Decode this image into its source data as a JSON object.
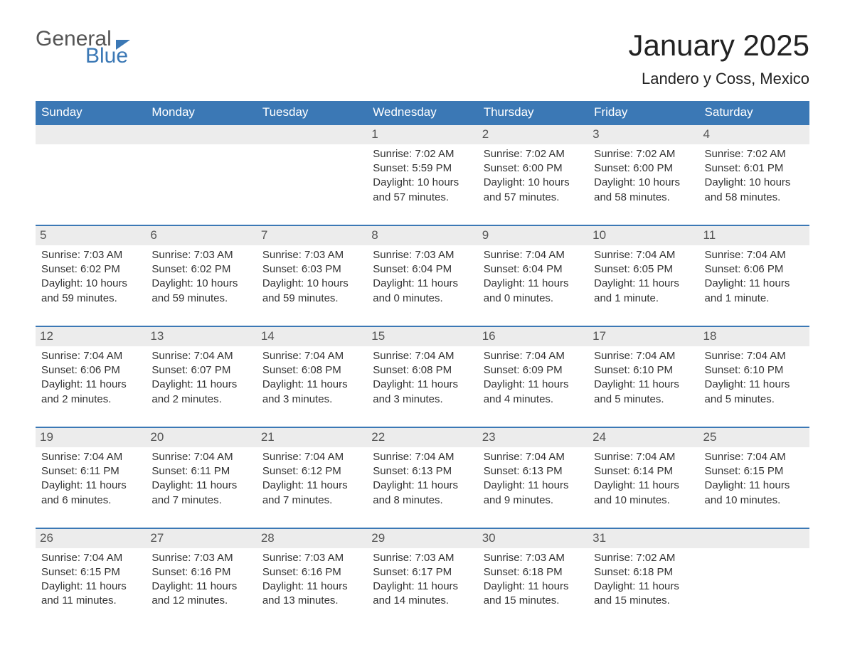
{
  "logo": {
    "part1": "General",
    "part2": "Blue"
  },
  "title": "January 2025",
  "location": "Landero y Coss, Mexico",
  "colors": {
    "header_bg": "#3b78b5",
    "header_text": "#ffffff",
    "day_bg": "#ececec",
    "body_text": "#333333",
    "logo_gray": "#555555",
    "logo_blue": "#3b78b5",
    "page_bg": "#ffffff"
  },
  "typography": {
    "title_fontsize": 42,
    "location_fontsize": 22,
    "header_fontsize": 17,
    "cell_fontsize": 15
  },
  "weekdays": [
    "Sunday",
    "Monday",
    "Tuesday",
    "Wednesday",
    "Thursday",
    "Friday",
    "Saturday"
  ],
  "weeks": [
    [
      {
        "day": "",
        "sunrise": "",
        "sunset": "",
        "daylight": ""
      },
      {
        "day": "",
        "sunrise": "",
        "sunset": "",
        "daylight": ""
      },
      {
        "day": "",
        "sunrise": "",
        "sunset": "",
        "daylight": ""
      },
      {
        "day": "1",
        "sunrise": "Sunrise: 7:02 AM",
        "sunset": "Sunset: 5:59 PM",
        "daylight": "Daylight: 10 hours and 57 minutes."
      },
      {
        "day": "2",
        "sunrise": "Sunrise: 7:02 AM",
        "sunset": "Sunset: 6:00 PM",
        "daylight": "Daylight: 10 hours and 57 minutes."
      },
      {
        "day": "3",
        "sunrise": "Sunrise: 7:02 AM",
        "sunset": "Sunset: 6:00 PM",
        "daylight": "Daylight: 10 hours and 58 minutes."
      },
      {
        "day": "4",
        "sunrise": "Sunrise: 7:02 AM",
        "sunset": "Sunset: 6:01 PM",
        "daylight": "Daylight: 10 hours and 58 minutes."
      }
    ],
    [
      {
        "day": "5",
        "sunrise": "Sunrise: 7:03 AM",
        "sunset": "Sunset: 6:02 PM",
        "daylight": "Daylight: 10 hours and 59 minutes."
      },
      {
        "day": "6",
        "sunrise": "Sunrise: 7:03 AM",
        "sunset": "Sunset: 6:02 PM",
        "daylight": "Daylight: 10 hours and 59 minutes."
      },
      {
        "day": "7",
        "sunrise": "Sunrise: 7:03 AM",
        "sunset": "Sunset: 6:03 PM",
        "daylight": "Daylight: 10 hours and 59 minutes."
      },
      {
        "day": "8",
        "sunrise": "Sunrise: 7:03 AM",
        "sunset": "Sunset: 6:04 PM",
        "daylight": "Daylight: 11 hours and 0 minutes."
      },
      {
        "day": "9",
        "sunrise": "Sunrise: 7:04 AM",
        "sunset": "Sunset: 6:04 PM",
        "daylight": "Daylight: 11 hours and 0 minutes."
      },
      {
        "day": "10",
        "sunrise": "Sunrise: 7:04 AM",
        "sunset": "Sunset: 6:05 PM",
        "daylight": "Daylight: 11 hours and 1 minute."
      },
      {
        "day": "11",
        "sunrise": "Sunrise: 7:04 AM",
        "sunset": "Sunset: 6:06 PM",
        "daylight": "Daylight: 11 hours and 1 minute."
      }
    ],
    [
      {
        "day": "12",
        "sunrise": "Sunrise: 7:04 AM",
        "sunset": "Sunset: 6:06 PM",
        "daylight": "Daylight: 11 hours and 2 minutes."
      },
      {
        "day": "13",
        "sunrise": "Sunrise: 7:04 AM",
        "sunset": "Sunset: 6:07 PM",
        "daylight": "Daylight: 11 hours and 2 minutes."
      },
      {
        "day": "14",
        "sunrise": "Sunrise: 7:04 AM",
        "sunset": "Sunset: 6:08 PM",
        "daylight": "Daylight: 11 hours and 3 minutes."
      },
      {
        "day": "15",
        "sunrise": "Sunrise: 7:04 AM",
        "sunset": "Sunset: 6:08 PM",
        "daylight": "Daylight: 11 hours and 3 minutes."
      },
      {
        "day": "16",
        "sunrise": "Sunrise: 7:04 AM",
        "sunset": "Sunset: 6:09 PM",
        "daylight": "Daylight: 11 hours and 4 minutes."
      },
      {
        "day": "17",
        "sunrise": "Sunrise: 7:04 AM",
        "sunset": "Sunset: 6:10 PM",
        "daylight": "Daylight: 11 hours and 5 minutes."
      },
      {
        "day": "18",
        "sunrise": "Sunrise: 7:04 AM",
        "sunset": "Sunset: 6:10 PM",
        "daylight": "Daylight: 11 hours and 5 minutes."
      }
    ],
    [
      {
        "day": "19",
        "sunrise": "Sunrise: 7:04 AM",
        "sunset": "Sunset: 6:11 PM",
        "daylight": "Daylight: 11 hours and 6 minutes."
      },
      {
        "day": "20",
        "sunrise": "Sunrise: 7:04 AM",
        "sunset": "Sunset: 6:11 PM",
        "daylight": "Daylight: 11 hours and 7 minutes."
      },
      {
        "day": "21",
        "sunrise": "Sunrise: 7:04 AM",
        "sunset": "Sunset: 6:12 PM",
        "daylight": "Daylight: 11 hours and 7 minutes."
      },
      {
        "day": "22",
        "sunrise": "Sunrise: 7:04 AM",
        "sunset": "Sunset: 6:13 PM",
        "daylight": "Daylight: 11 hours and 8 minutes."
      },
      {
        "day": "23",
        "sunrise": "Sunrise: 7:04 AM",
        "sunset": "Sunset: 6:13 PM",
        "daylight": "Daylight: 11 hours and 9 minutes."
      },
      {
        "day": "24",
        "sunrise": "Sunrise: 7:04 AM",
        "sunset": "Sunset: 6:14 PM",
        "daylight": "Daylight: 11 hours and 10 minutes."
      },
      {
        "day": "25",
        "sunrise": "Sunrise: 7:04 AM",
        "sunset": "Sunset: 6:15 PM",
        "daylight": "Daylight: 11 hours and 10 minutes."
      }
    ],
    [
      {
        "day": "26",
        "sunrise": "Sunrise: 7:04 AM",
        "sunset": "Sunset: 6:15 PM",
        "daylight": "Daylight: 11 hours and 11 minutes."
      },
      {
        "day": "27",
        "sunrise": "Sunrise: 7:03 AM",
        "sunset": "Sunset: 6:16 PM",
        "daylight": "Daylight: 11 hours and 12 minutes."
      },
      {
        "day": "28",
        "sunrise": "Sunrise: 7:03 AM",
        "sunset": "Sunset: 6:16 PM",
        "daylight": "Daylight: 11 hours and 13 minutes."
      },
      {
        "day": "29",
        "sunrise": "Sunrise: 7:03 AM",
        "sunset": "Sunset: 6:17 PM",
        "daylight": "Daylight: 11 hours and 14 minutes."
      },
      {
        "day": "30",
        "sunrise": "Sunrise: 7:03 AM",
        "sunset": "Sunset: 6:18 PM",
        "daylight": "Daylight: 11 hours and 15 minutes."
      },
      {
        "day": "31",
        "sunrise": "Sunrise: 7:02 AM",
        "sunset": "Sunset: 6:18 PM",
        "daylight": "Daylight: 11 hours and 15 minutes."
      },
      {
        "day": "",
        "sunrise": "",
        "sunset": "",
        "daylight": ""
      }
    ]
  ]
}
